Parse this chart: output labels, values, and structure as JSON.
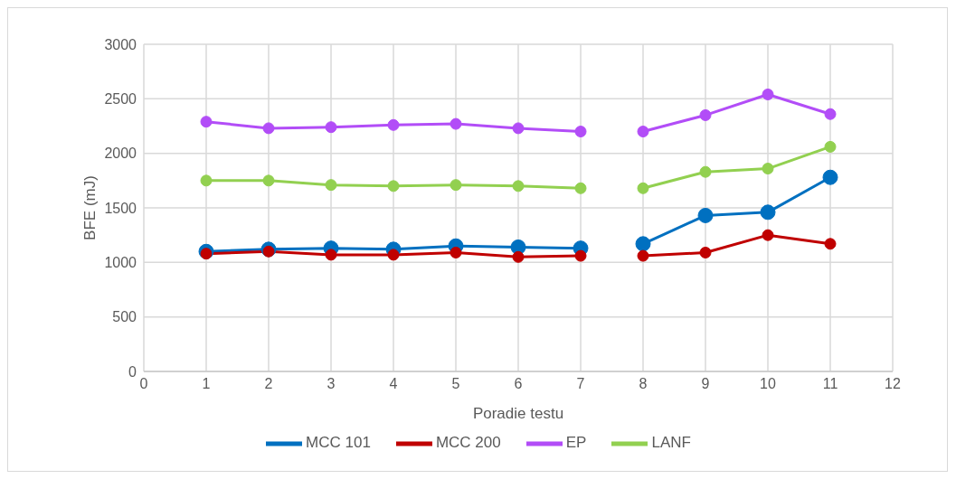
{
  "chart_data": {
    "type": "line",
    "xlabel": "Poradie testu",
    "ylabel": "BFE (mJ)",
    "x": [
      1,
      2,
      3,
      4,
      5,
      6,
      7,
      7.5,
      8,
      9,
      10,
      11
    ],
    "series": [
      {
        "name": "MCC 101",
        "color": "#0070c0",
        "values": [
          1100,
          1120,
          1130,
          1120,
          1150,
          1140,
          1130,
          null,
          1170,
          1430,
          1460,
          1780
        ]
      },
      {
        "name": "MCC 200",
        "color": "#c00000",
        "values": [
          1080,
          1100,
          1070,
          1070,
          1090,
          1050,
          1060,
          null,
          1060,
          1090,
          1250,
          1170
        ]
      },
      {
        "name": "EP",
        "color": "#b24df7",
        "values": [
          2290,
          2230,
          2240,
          2260,
          2270,
          2230,
          2200,
          null,
          2200,
          2350,
          2540,
          2360
        ]
      },
      {
        "name": "LANF",
        "color": "#92d050",
        "values": [
          1750,
          1750,
          1710,
          1700,
          1710,
          1700,
          1680,
          null,
          1680,
          1830,
          1860,
          2060
        ]
      }
    ],
    "xlim": [
      0,
      12
    ],
    "xticks": [
      0,
      1,
      2,
      3,
      4,
      5,
      6,
      7,
      8,
      9,
      10,
      11,
      12
    ],
    "ylim": [
      0,
      3000
    ],
    "yticks": [
      0,
      500,
      1000,
      1500,
      2000,
      2500,
      3000
    ],
    "grid": true,
    "legend": "bottom",
    "marker": "circle",
    "line_style": "solid"
  }
}
